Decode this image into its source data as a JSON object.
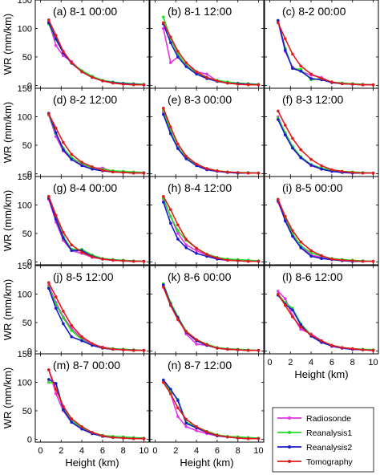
{
  "colors": {
    "Radiosonde": "#e533e5",
    "Reanalysis1": "#22dd22",
    "Reanalysis2": "#1a1acc",
    "Tomography": "#e01a1a"
  },
  "chart_data": {
    "type": "line",
    "ylabel": "WR (mm/km)",
    "xlabel": "Height (km)",
    "xlim": [
      -0.5,
      10.5
    ],
    "ylim": [
      -5,
      150
    ],
    "xticks": [
      0,
      2,
      4,
      6,
      8,
      10
    ],
    "yticks": [
      0,
      50,
      100,
      150
    ],
    "x": [
      0.8,
      1.5,
      2.2,
      3,
      4,
      5,
      6,
      7,
      8,
      9,
      10
    ],
    "legend": [
      "Radiosonde",
      "Reanalysis1",
      "Reanalysis2",
      "Tomography"
    ],
    "panels": [
      {
        "title": "(a) 8-1 00:00",
        "series": [
          {
            "name": "Radiosonde",
            "values": [
              112,
              70,
              52,
              42,
              24,
              16,
              8,
              5,
              3,
              2,
              1
            ]
          },
          {
            "name": "Reanalysis1",
            "values": [
              108,
              80,
              58,
              40,
              26,
              16,
              9,
              6,
              4,
              3,
              2
            ]
          },
          {
            "name": "Reanalysis2",
            "values": [
              110,
              82,
              57,
              39,
              24,
              14,
              8,
              5,
              3,
              2,
              1
            ]
          },
          {
            "name": "Tomography",
            "values": [
              115,
              88,
              60,
              40,
              24,
              14,
              8,
              4,
              2,
              1,
              1
            ]
          }
        ]
      },
      {
        "title": "(b) 8-1 12:00",
        "series": [
          {
            "name": "Radiosonde",
            "values": [
              100,
              40,
              50,
              35,
              24,
              20,
              8,
              5,
              3,
              2,
              1
            ]
          },
          {
            "name": "Reanalysis1",
            "values": [
              120,
              82,
              55,
              35,
              22,
              14,
              9,
              6,
              4,
              3,
              2
            ]
          },
          {
            "name": "Reanalysis2",
            "values": [
              108,
              75,
              50,
              33,
              20,
              12,
              7,
              4,
              3,
              2,
              1
            ]
          },
          {
            "name": "Tomography",
            "values": [
              110,
              85,
              60,
              40,
              24,
              14,
              8,
              4,
              2,
              1,
              1
            ]
          }
        ]
      },
      {
        "title": "(c) 8-2 00:00",
        "series": [
          {
            "name": "Radiosonde",
            "values": [
              112,
              60,
              32,
              25,
              18,
              14,
              5,
              3,
              2,
              1,
              1
            ]
          },
          {
            "name": "Reanalysis1",
            "values": [
              114,
              65,
              30,
              28,
              10,
              12,
              6,
              4,
              3,
              2,
              1
            ]
          },
          {
            "name": "Reanalysis2",
            "values": [
              114,
              62,
              30,
              25,
              12,
              10,
              5,
              3,
              2,
              1,
              1
            ]
          },
          {
            "name": "Tomography",
            "values": [
              110,
              82,
              55,
              34,
              20,
              12,
              6,
              3,
              2,
              1,
              1
            ]
          }
        ]
      },
      {
        "title": "(d) 8-2 12:00",
        "series": [
          {
            "name": "Radiosonde",
            "values": [
              103,
              65,
              40,
              25,
              16,
              10,
              10,
              4,
              3,
              2,
              1
            ]
          },
          {
            "name": "Reanalysis1",
            "values": [
              104,
              70,
              45,
              28,
              18,
              10,
              8,
              5,
              4,
              3,
              2
            ]
          },
          {
            "name": "Reanalysis2",
            "values": [
              106,
              72,
              42,
              25,
              14,
              8,
              5,
              3,
              2,
              1,
              1
            ]
          },
          {
            "name": "Tomography",
            "values": [
              105,
              80,
              55,
              34,
              20,
              12,
              6,
              3,
              2,
              1,
              1
            ]
          }
        ]
      },
      {
        "title": "(e) 8-3 00:00",
        "series": [
          {
            "name": "Radiosonde",
            "values": [
              108,
              72,
              45,
              28,
              16,
              9,
              5,
              3,
              2,
              1,
              1
            ]
          },
          {
            "name": "Reanalysis1",
            "values": [
              112,
              75,
              46,
              28,
              15,
              8,
              5,
              3,
              2,
              2,
              1
            ]
          },
          {
            "name": "Reanalysis2",
            "values": [
              104,
              70,
              44,
              26,
              14,
              7,
              4,
              2,
              1,
              1,
              1
            ]
          },
          {
            "name": "Tomography",
            "values": [
              115,
              82,
              52,
              31,
              17,
              9,
              5,
              3,
              2,
              1,
              1
            ]
          }
        ]
      },
      {
        "title": "(f) 8-3 12:00",
        "series": [
          {
            "name": "Radiosonde",
            "values": [
              100,
              70,
              45,
              28,
              14,
              8,
              5,
              3,
              2,
              1,
              1
            ]
          },
          {
            "name": "Reanalysis1",
            "values": [
              98,
              72,
              48,
              30,
              16,
              10,
              6,
              4,
              3,
              2,
              1
            ]
          },
          {
            "name": "Reanalysis2",
            "values": [
              95,
              68,
              45,
              28,
              15,
              8,
              4,
              2,
              1,
              1,
              1
            ]
          },
          {
            "name": "Tomography",
            "values": [
              110,
              85,
              62,
              42,
              25,
              14,
              7,
              4,
              2,
              1,
              1
            ]
          }
        ]
      },
      {
        "title": "(g) 8-4 00:00",
        "series": [
          {
            "name": "Radiosonde",
            "values": [
              110,
              70,
              38,
              20,
              15,
              8,
              5,
              3,
              2,
              1,
              1
            ]
          },
          {
            "name": "Reanalysis1",
            "values": [
              115,
              78,
              45,
              22,
              22,
              12,
              6,
              4,
              3,
              2,
              1
            ]
          },
          {
            "name": "Reanalysis2",
            "values": [
              112,
              75,
              42,
              20,
              20,
              10,
              5,
              3,
              2,
              1,
              1
            ]
          },
          {
            "name": "Tomography",
            "values": [
              115,
              82,
              52,
              30,
              17,
              9,
              5,
              3,
              2,
              1,
              1
            ]
          }
        ]
      },
      {
        "title": "(h) 8-4 12:00",
        "series": [
          {
            "name": "Radiosonde",
            "values": [
              110,
              80,
              50,
              30,
              20,
              12,
              6,
              4,
              3,
              2,
              1
            ]
          },
          {
            "name": "Reanalysis1",
            "values": [
              112,
              80,
              55,
              38,
              24,
              14,
              8,
              5,
              4,
              3,
              2
            ]
          },
          {
            "name": "Reanalysis2",
            "values": [
              105,
              68,
              40,
              25,
              15,
              10,
              5,
              3,
              2,
              1,
              1
            ]
          },
          {
            "name": "Tomography",
            "values": [
              115,
              92,
              65,
              40,
              24,
              13,
              7,
              3,
              2,
              1,
              1
            ]
          }
        ]
      },
      {
        "title": "(i) 8-5 00:00",
        "series": [
          {
            "name": "Radiosonde",
            "values": [
              105,
              75,
              48,
              28,
              12,
              8,
              5,
              3,
              2,
              1,
              1
            ]
          },
          {
            "name": "Reanalysis1",
            "values": [
              110,
              78,
              50,
              28,
              16,
              10,
              6,
              4,
              3,
              2,
              1
            ]
          },
          {
            "name": "Reanalysis2",
            "values": [
              108,
              72,
              45,
              25,
              10,
              6,
              4,
              2,
              1,
              1,
              1
            ]
          },
          {
            "name": "Tomography",
            "values": [
              110,
              80,
              55,
              35,
              20,
              11,
              5,
              3,
              2,
              1,
              1
            ]
          }
        ]
      },
      {
        "title": "(j) 8-5 12:00",
        "series": [
          {
            "name": "Radiosonde",
            "values": [
              115,
              85,
              60,
              40,
              22,
              12,
              7,
              4,
              3,
              2,
              1
            ]
          },
          {
            "name": "Reanalysis1",
            "values": [
              112,
              82,
              58,
              36,
              20,
              10,
              6,
              4,
              3,
              2,
              1
            ]
          },
          {
            "name": "Reanalysis2",
            "values": [
              110,
              75,
              48,
              25,
              18,
              10,
              5,
              3,
              2,
              1,
              1
            ]
          },
          {
            "name": "Tomography",
            "values": [
              120,
              95,
              70,
              45,
              25,
              13,
              6,
              3,
              2,
              1,
              1
            ]
          }
        ]
      },
      {
        "title": "(k) 8-6 00:00",
        "series": [
          {
            "name": "Radiosonde",
            "values": [
              115,
              80,
              60,
              30,
              12,
              10,
              5,
              3,
              2,
              1,
              1
            ]
          },
          {
            "name": "Reanalysis1",
            "values": [
              118,
              85,
              60,
              35,
              20,
              12,
              6,
              4,
              3,
              2,
              1
            ]
          },
          {
            "name": "Reanalysis2",
            "values": [
              116,
              82,
              58,
              33,
              18,
              10,
              5,
              3,
              2,
              1,
              1
            ]
          },
          {
            "name": "Tomography",
            "values": [
              112,
              80,
              55,
              34,
              20,
              11,
              5,
              3,
              2,
              1,
              1
            ]
          }
        ]
      },
      {
        "title": "(l) 8-6 12:00",
        "series": [
          {
            "name": "Radiosonde",
            "values": [
              105,
              92,
              62,
              38,
              30,
              18,
              8,
              5,
              3,
              2,
              1
            ]
          },
          {
            "name": "Reanalysis1",
            "values": [
              100,
              85,
              75,
              48,
              28,
              16,
              10,
              6,
              4,
              3,
              2
            ]
          },
          {
            "name": "Reanalysis2",
            "values": [
              98,
              82,
              72,
              46,
              26,
              15,
              9,
              5,
              3,
              2,
              1
            ]
          },
          {
            "name": "Tomography",
            "values": [
              100,
              80,
              60,
              42,
              28,
              18,
              10,
              6,
              4,
              2,
              1
            ]
          }
        ]
      },
      {
        "title": "(m) 8-7 00:00",
        "series": [
          {
            "name": "Radiosonde",
            "values": [
              122,
              80,
              50,
              30,
              18,
              10,
              6,
              4,
              3,
              2,
              1
            ]
          },
          {
            "name": "Reanalysis1",
            "values": [
              100,
              98,
              55,
              33,
              20,
              12,
              7,
              5,
              4,
              3,
              2
            ]
          },
          {
            "name": "Reanalysis2",
            "values": [
              105,
              98,
              52,
              30,
              18,
              10,
              5,
              3,
              2,
              1,
              1
            ]
          },
          {
            "name": "Tomography",
            "values": [
              122,
              88,
              58,
              36,
              22,
              12,
              6,
              3,
              2,
              1,
              1
            ]
          }
        ]
      },
      {
        "title": "(n) 8-7 12:00",
        "series": [
          {
            "name": "Radiosonde",
            "values": [
              100,
              80,
              40,
              22,
              15,
              10,
              6,
              4,
              3,
              2,
              1
            ]
          },
          {
            "name": "Reanalysis1",
            "values": [
              102,
              85,
              70,
              30,
              22,
              14,
              8,
              5,
              4,
              3,
              2
            ]
          },
          {
            "name": "Reanalysis2",
            "values": [
              104,
              88,
              68,
              28,
              20,
              12,
              6,
              4,
              2,
              1,
              1
            ]
          },
          {
            "name": "Tomography",
            "values": [
              100,
              80,
              55,
              35,
              22,
              13,
              7,
              4,
              2,
              1,
              1
            ]
          }
        ]
      }
    ]
  }
}
